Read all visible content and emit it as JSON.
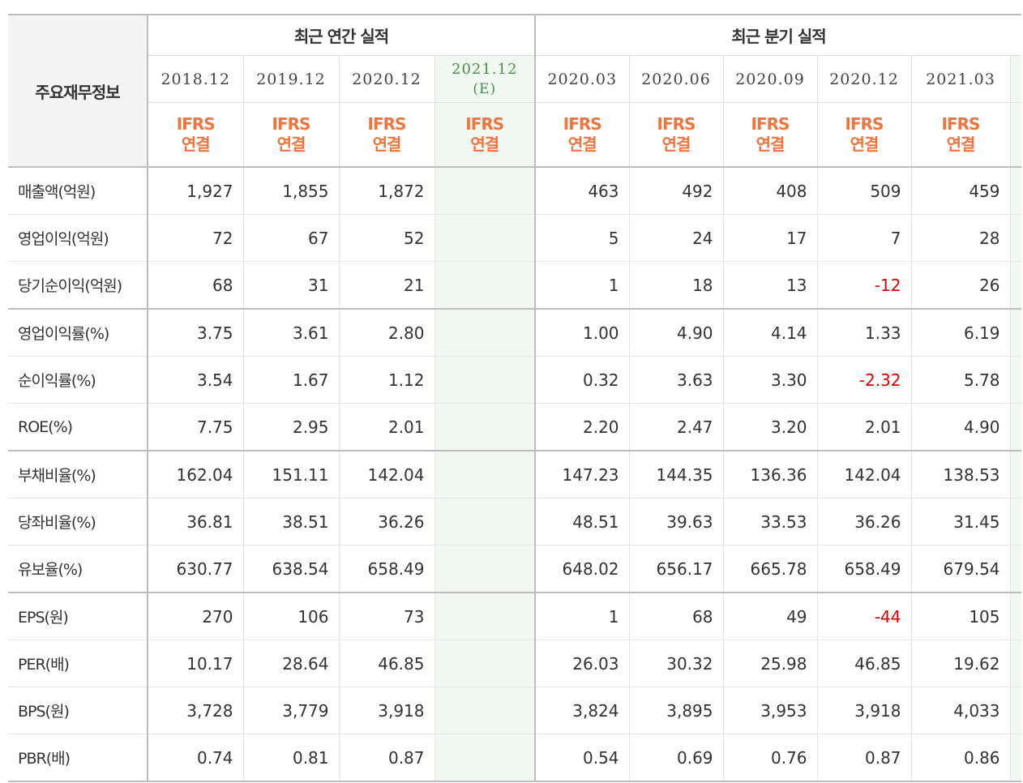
{
  "header": {
    "main_label": "주요재무정보",
    "annual_group": "최근 연간 실적",
    "quarterly_group": "최근 분기 실적",
    "annual_periods": [
      "2018.12",
      "2019.12",
      "2020.12"
    ],
    "estimate_period": "2021.12",
    "estimate_mark": "(E)",
    "quarter_periods": [
      "2020.03",
      "2020.06",
      "2020.09",
      "2020.12",
      "2021.03"
    ],
    "ifrs_line1": "IFRS",
    "ifrs_line2": "연결"
  },
  "rows": [
    {
      "label": "매출액(억원)",
      "annual": [
        "1,927",
        "1,855",
        "1,872"
      ],
      "estimate": "",
      "quarterly": [
        "463",
        "492",
        "408",
        "509",
        "459"
      ]
    },
    {
      "label": "영업이익(억원)",
      "annual": [
        "72",
        "67",
        "52"
      ],
      "estimate": "",
      "quarterly": [
        "5",
        "24",
        "17",
        "7",
        "28"
      ]
    },
    {
      "label": "당기순이익(억원)",
      "annual": [
        "68",
        "31",
        "21"
      ],
      "estimate": "",
      "quarterly": [
        "1",
        "18",
        "13",
        "-12",
        "26"
      ]
    },
    {
      "label": "영업이익률(%)",
      "annual": [
        "3.75",
        "3.61",
        "2.80"
      ],
      "estimate": "",
      "quarterly": [
        "1.00",
        "4.90",
        "4.14",
        "1.33",
        "6.19"
      ]
    },
    {
      "label": "순이익률(%)",
      "annual": [
        "3.54",
        "1.67",
        "1.12"
      ],
      "estimate": "",
      "quarterly": [
        "0.32",
        "3.63",
        "3.30",
        "-2.32",
        "5.78"
      ]
    },
    {
      "label": "ROE(%)",
      "annual": [
        "7.75",
        "2.95",
        "2.01"
      ],
      "estimate": "",
      "quarterly": [
        "2.20",
        "2.47",
        "3.20",
        "2.01",
        "4.90"
      ]
    },
    {
      "label": "부채비율(%)",
      "annual": [
        "162.04",
        "151.11",
        "142.04"
      ],
      "estimate": "",
      "quarterly": [
        "147.23",
        "144.35",
        "136.36",
        "142.04",
        "138.53"
      ]
    },
    {
      "label": "당좌비율(%)",
      "annual": [
        "36.81",
        "38.51",
        "36.26"
      ],
      "estimate": "",
      "quarterly": [
        "48.51",
        "39.63",
        "33.53",
        "36.26",
        "31.45"
      ]
    },
    {
      "label": "유보율(%)",
      "annual": [
        "630.77",
        "638.54",
        "658.49"
      ],
      "estimate": "",
      "quarterly": [
        "648.02",
        "656.17",
        "665.78",
        "658.49",
        "679.54"
      ]
    },
    {
      "label": "EPS(원)",
      "annual": [
        "270",
        "106",
        "73"
      ],
      "estimate": "",
      "quarterly": [
        "1",
        "68",
        "49",
        "-44",
        "105"
      ]
    },
    {
      "label": "PER(배)",
      "annual": [
        "10.17",
        "28.64",
        "46.85"
      ],
      "estimate": "",
      "quarterly": [
        "26.03",
        "30.32",
        "25.98",
        "46.85",
        "19.62"
      ]
    },
    {
      "label": "BPS(원)",
      "annual": [
        "3,728",
        "3,779",
        "3,918"
      ],
      "estimate": "",
      "quarterly": [
        "3,824",
        "3,895",
        "3,953",
        "3,918",
        "4,033"
      ]
    },
    {
      "label": "PBR(배)",
      "annual": [
        "0.74",
        "0.81",
        "0.87"
      ],
      "estimate": "",
      "quarterly": [
        "0.54",
        "0.69",
        "0.76",
        "0.87",
        "0.86"
      ]
    }
  ],
  "colors": {
    "negative": "#e00000",
    "ifrs": "#f0743c",
    "estimate_bg": "#f1f7f1",
    "estimate_text": "#4a8f4a"
  }
}
